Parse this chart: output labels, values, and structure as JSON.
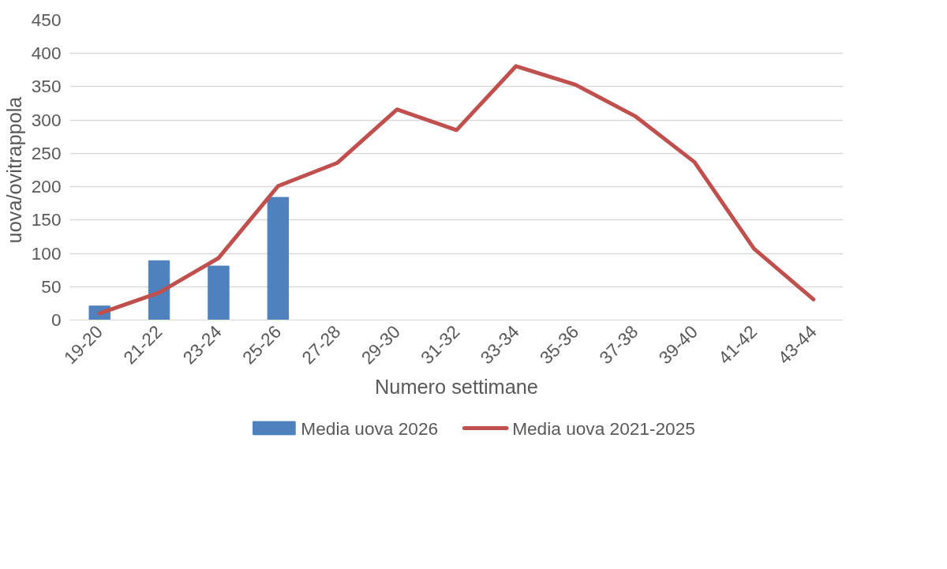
{
  "chart_data": {
    "type": "bar",
    "xlabel": "Numero settimane",
    "ylabel": "uova/ovitrappola",
    "categories": [
      "19-20",
      "21-22",
      "23-24",
      "25-26",
      "27-28",
      "29-30",
      "31-32",
      "33-34",
      "35-36",
      "37-38",
      "39-40",
      "41-42",
      "43-44"
    ],
    "series": [
      {
        "name": "Media uova 2026",
        "color": "#4f81bd",
        "values": [
          21,
          89,
          81,
          184,
          null,
          null,
          null,
          null,
          null,
          null,
          null,
          null,
          null
        ]
      },
      {
        "name": "Media uova 2021-2025",
        "type": "line",
        "color": "#c0504d",
        "values": [
          10,
          41,
          93,
          201,
          236,
          316,
          285,
          381,
          353,
          306,
          237,
          107,
          31
        ]
      }
    ],
    "ylim": [
      0,
      450
    ],
    "yticks": [
      0,
      50,
      100,
      150,
      200,
      250,
      300,
      350,
      400,
      450
    ],
    "grid": "y",
    "legend": "bottom",
    "marker": "none",
    "line_style": "solid"
  }
}
